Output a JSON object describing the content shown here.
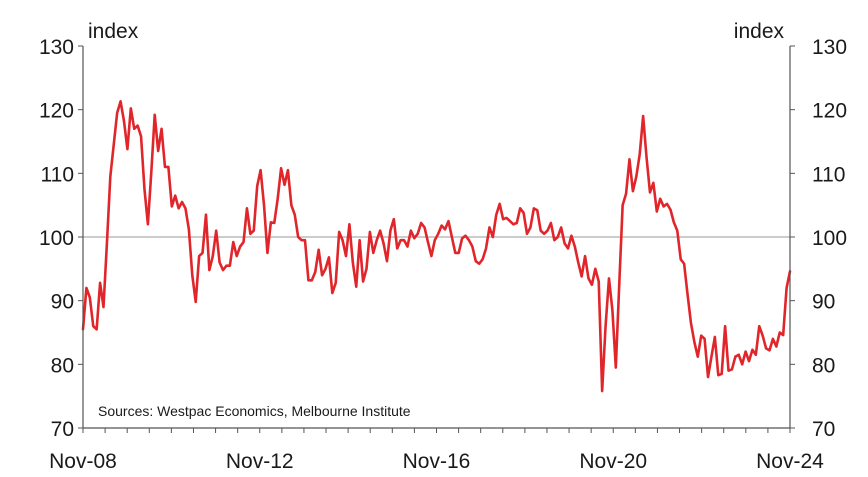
{
  "chart_data": {
    "type": "line",
    "title": "",
    "ylabel_left": "index",
    "ylabel_right": "index",
    "source": "Sources: Westpac Economics, Melbourne Institute",
    "ylim": [
      70,
      130
    ],
    "yticks": [
      70,
      80,
      90,
      100,
      110,
      120,
      130
    ],
    "reference_line": 100,
    "x_start": "2008-11",
    "x_end": "2024-11",
    "x_ticks": [
      {
        "label": "Nov-08",
        "month_index": 0
      },
      {
        "label": "Nov-12",
        "month_index": 48
      },
      {
        "label": "Nov-16",
        "month_index": 96
      },
      {
        "label": "Nov-20",
        "month_index": 144
      },
      {
        "label": "Nov-24",
        "month_index": 192
      }
    ],
    "colors": {
      "series": "#e0262b",
      "reference": "#9a9a9a",
      "axis": "#555555"
    },
    "series": [
      {
        "values": [
          85.5,
          92.0,
          90.5,
          86.0,
          85.5,
          92.8,
          89.0,
          99.0,
          109.5,
          114.5,
          119.5,
          121.3,
          118.2,
          113.8,
          120.2,
          117.0,
          117.5,
          115.8,
          107.5,
          102.0,
          110.2,
          119.2,
          113.5,
          117.0,
          111.0,
          111.0,
          104.8,
          106.5,
          104.5,
          105.5,
          104.5,
          101.2,
          94.0,
          89.8,
          97.0,
          97.5,
          103.5,
          94.8,
          97.0,
          101.0,
          96.0,
          94.8,
          95.5,
          95.5,
          99.2,
          97.0,
          98.5,
          99.2,
          104.5,
          100.5,
          101.0,
          108.0,
          110.5,
          105.0,
          97.5,
          102.3,
          102.2,
          106.0,
          110.8,
          108.2,
          110.5,
          105.0,
          103.5,
          100.0,
          99.5,
          99.5,
          93.2,
          93.2,
          94.5,
          98.0,
          94.0,
          95.0,
          96.8,
          91.2,
          92.8,
          100.8,
          99.5,
          97.0,
          102.0,
          96.0,
          92.2,
          99.5,
          93.0,
          95.0,
          100.8,
          97.5,
          99.5,
          101.0,
          99.0,
          96.2,
          101.0,
          102.8,
          98.2,
          99.5,
          99.5,
          98.5,
          101.0,
          99.8,
          100.5,
          102.2,
          101.5,
          99.2,
          97.0,
          99.5,
          100.5,
          101.8,
          101.2,
          102.5,
          100.0,
          97.5,
          97.5,
          99.8,
          100.2,
          99.5,
          98.5,
          96.2,
          95.8,
          96.5,
          98.2,
          101.5,
          100.0,
          103.5,
          105.2,
          102.8,
          103.0,
          102.5,
          102.0,
          102.2,
          104.5,
          103.8,
          100.5,
          101.5,
          104.5,
          104.2,
          101.0,
          100.5,
          101.0,
          102.2,
          99.5,
          100.0,
          101.5,
          99.0,
          98.2,
          100.2,
          98.5,
          96.0,
          93.8,
          97.0,
          93.5,
          92.5,
          95.0,
          93.0,
          75.8,
          86.0,
          93.5,
          88.5,
          79.5,
          92.5,
          105.0,
          106.8,
          112.2,
          107.2,
          109.5,
          113.0,
          119.0,
          112.5,
          107.0,
          108.5,
          104.0,
          106.0,
          104.8,
          105.2,
          104.3,
          102.3,
          101.0,
          96.5,
          95.8,
          91.0,
          86.5,
          83.5,
          81.2,
          84.5,
          84.0,
          78.0,
          81.2,
          84.3,
          78.3,
          78.5,
          86.0,
          79.0,
          79.2,
          81.2,
          81.5,
          80.0,
          82.0,
          80.5,
          82.3,
          81.5,
          86.0,
          84.5,
          82.5,
          82.2,
          84.0,
          82.8,
          85.0,
          84.6,
          92.0,
          94.6
        ]
      }
    ]
  }
}
